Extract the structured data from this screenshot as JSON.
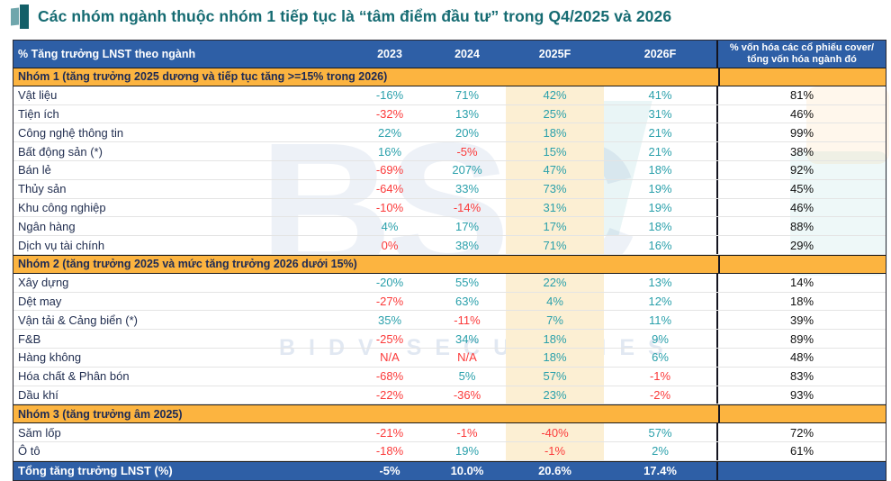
{
  "title": "Các nhóm ngành thuộc nhóm 1 tiếp tục là “tâm điểm đầu tư” trong Q4/2025 và 2026",
  "palette": {
    "title_teal": "#156b72",
    "header_blue": "#2e5fa6",
    "group_orange": "#fcb440",
    "group_text": "#1d2a55",
    "value_positive_teal": "#2aa0ab",
    "value_negative_red": "#fb3a3a",
    "forecast_column_highlight": "#fcefd3",
    "label_navy": "#1f2c4e"
  },
  "watermark": {
    "big": "BSC",
    "sub": "BIDV SECURITIES"
  },
  "table": {
    "header": {
      "label": "% Tăng trưởng LNST theo ngành",
      "years": [
        "2023",
        "2024",
        "2025F",
        "2026F"
      ],
      "cap_line1": "% vốn hóa các cổ phiếu cover/",
      "cap_line2": "tổng vốn hóa ngành đó"
    },
    "groups": [
      {
        "title": "Nhóm 1 (tăng trưởng 2025 dương và tiếp tục tăng >=15% trong 2026)",
        "rows": [
          {
            "label": "Vật liệu",
            "values": [
              {
                "text": "-16%",
                "color": "teal"
              },
              {
                "text": "71%",
                "color": "teal"
              },
              {
                "text": "42%",
                "color": "teal"
              },
              {
                "text": "41%",
                "color": "teal"
              }
            ],
            "cap": "81%"
          },
          {
            "label": "Tiện ích",
            "values": [
              {
                "text": "-32%",
                "color": "red"
              },
              {
                "text": "13%",
                "color": "teal"
              },
              {
                "text": "25%",
                "color": "teal"
              },
              {
                "text": "31%",
                "color": "teal"
              }
            ],
            "cap": "46%"
          },
          {
            "label": "Công nghệ thông tin",
            "values": [
              {
                "text": "22%",
                "color": "teal"
              },
              {
                "text": "20%",
                "color": "teal"
              },
              {
                "text": "18%",
                "color": "teal"
              },
              {
                "text": "21%",
                "color": "teal"
              }
            ],
            "cap": "99%"
          },
          {
            "label": "Bất động sản (*)",
            "values": [
              {
                "text": "16%",
                "color": "teal"
              },
              {
                "text": "-5%",
                "color": "red"
              },
              {
                "text": "15%",
                "color": "teal"
              },
              {
                "text": "21%",
                "color": "teal"
              }
            ],
            "cap": "38%"
          },
          {
            "label": "Bán lẻ",
            "values": [
              {
                "text": "-69%",
                "color": "red"
              },
              {
                "text": "207%",
                "color": "teal"
              },
              {
                "text": "47%",
                "color": "teal"
              },
              {
                "text": "18%",
                "color": "teal"
              }
            ],
            "cap": "92%"
          },
          {
            "label": "Thủy sản",
            "values": [
              {
                "text": "-64%",
                "color": "red"
              },
              {
                "text": "33%",
                "color": "teal"
              },
              {
                "text": "73%",
                "color": "teal"
              },
              {
                "text": "19%",
                "color": "teal"
              }
            ],
            "cap": "45%"
          },
          {
            "label": "Khu công nghiệp",
            "values": [
              {
                "text": "-10%",
                "color": "red"
              },
              {
                "text": "-14%",
                "color": "red"
              },
              {
                "text": "31%",
                "color": "teal"
              },
              {
                "text": "19%",
                "color": "teal"
              }
            ],
            "cap": "46%"
          },
          {
            "label": "Ngân hàng",
            "values": [
              {
                "text": "4%",
                "color": "teal"
              },
              {
                "text": "17%",
                "color": "teal"
              },
              {
                "text": "17%",
                "color": "teal"
              },
              {
                "text": "18%",
                "color": "teal"
              }
            ],
            "cap": "88%"
          },
          {
            "label": "Dịch vụ tài chính",
            "values": [
              {
                "text": "0%",
                "color": "red"
              },
              {
                "text": "38%",
                "color": "teal"
              },
              {
                "text": "71%",
                "color": "teal"
              },
              {
                "text": "16%",
                "color": "teal"
              }
            ],
            "cap": "29%"
          }
        ]
      },
      {
        "title": "Nhóm 2 (tăng trưởng 2025 và mức tăng trưởng 2026 dưới 15%)",
        "rows": [
          {
            "label": "Xây dựng",
            "values": [
              {
                "text": "-20%",
                "color": "teal"
              },
              {
                "text": "55%",
                "color": "teal"
              },
              {
                "text": "22%",
                "color": "teal"
              },
              {
                "text": "13%",
                "color": "teal"
              }
            ],
            "cap": "14%"
          },
          {
            "label": "Dệt may",
            "values": [
              {
                "text": "-27%",
                "color": "red"
              },
              {
                "text": "63%",
                "color": "teal"
              },
              {
                "text": "4%",
                "color": "teal"
              },
              {
                "text": "12%",
                "color": "teal"
              }
            ],
            "cap": "18%"
          },
          {
            "label": "Vận tải & Cảng biển (*)",
            "values": [
              {
                "text": "35%",
                "color": "teal"
              },
              {
                "text": "-11%",
                "color": "red"
              },
              {
                "text": "7%",
                "color": "teal"
              },
              {
                "text": "11%",
                "color": "teal"
              }
            ],
            "cap": "39%"
          },
          {
            "label": "F&B",
            "values": [
              {
                "text": "-25%",
                "color": "red"
              },
              {
                "text": "34%",
                "color": "teal"
              },
              {
                "text": "18%",
                "color": "teal"
              },
              {
                "text": "9%",
                "color": "teal"
              }
            ],
            "cap": "89%"
          },
          {
            "label": "Hàng không",
            "values": [
              {
                "text": "N/A",
                "color": "red"
              },
              {
                "text": "N/A",
                "color": "red"
              },
              {
                "text": "18%",
                "color": "teal"
              },
              {
                "text": "6%",
                "color": "teal"
              }
            ],
            "cap": "48%"
          },
          {
            "label": "Hóa chất & Phân bón",
            "values": [
              {
                "text": "-68%",
                "color": "red"
              },
              {
                "text": "5%",
                "color": "teal"
              },
              {
                "text": "57%",
                "color": "teal"
              },
              {
                "text": "-1%",
                "color": "red"
              }
            ],
            "cap": "83%"
          },
          {
            "label": "Dầu khí",
            "values": [
              {
                "text": "-22%",
                "color": "red"
              },
              {
                "text": "-36%",
                "color": "red"
              },
              {
                "text": "23%",
                "color": "teal"
              },
              {
                "text": "-2%",
                "color": "red"
              }
            ],
            "cap": "93%"
          }
        ]
      },
      {
        "title": "Nhóm 3 (tăng trưởng âm 2025)",
        "rows": [
          {
            "label": "Săm lốp",
            "values": [
              {
                "text": "-21%",
                "color": "red"
              },
              {
                "text": "-1%",
                "color": "red"
              },
              {
                "text": "-40%",
                "color": "red"
              },
              {
                "text": "57%",
                "color": "teal"
              }
            ],
            "cap": "72%"
          },
          {
            "label": "Ô tô",
            "values": [
              {
                "text": "-18%",
                "color": "red"
              },
              {
                "text": "19%",
                "color": "teal"
              },
              {
                "text": "-1%",
                "color": "red"
              },
              {
                "text": "2%",
                "color": "teal"
              }
            ],
            "cap": "61%"
          }
        ]
      }
    ],
    "footer": {
      "label": "Tổng tăng trưởng LNST (%)",
      "values": [
        "-5%",
        "10.0%",
        "20.6%",
        "17.4%"
      ],
      "cap": ""
    }
  }
}
